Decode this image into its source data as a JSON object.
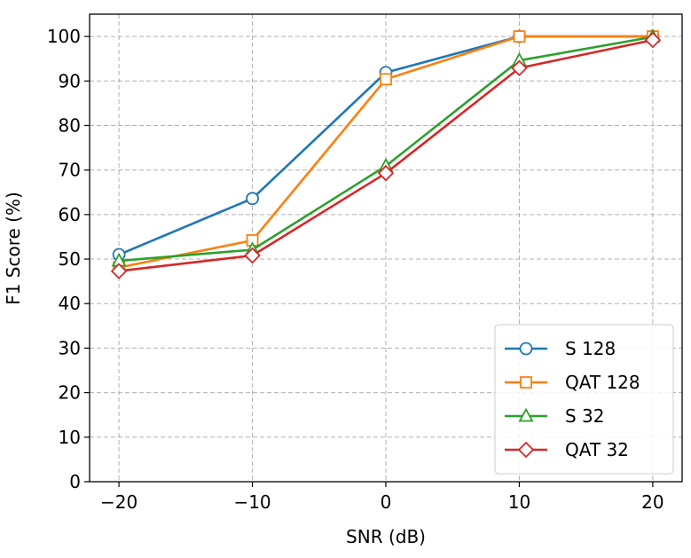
{
  "chart_data": {
    "type": "line",
    "title": "",
    "xlabel": "SNR (dB)",
    "ylabel": "F1 Score (%)",
    "x": [
      -20,
      -10,
      0,
      10,
      20
    ],
    "xticks": [
      -20,
      -10,
      0,
      10,
      20
    ],
    "xtick_labels": [
      "−20",
      "−10",
      "0",
      "10",
      "20"
    ],
    "yticks": [
      0,
      10,
      20,
      30,
      40,
      50,
      60,
      70,
      80,
      90,
      100
    ],
    "xlim": [
      -22.2,
      22.2
    ],
    "ylim": [
      0,
      105
    ],
    "grid": true,
    "grid_style": "dashed",
    "legend_position": "bottom-right",
    "series": [
      {
        "name": "S 128",
        "marker": "circle",
        "color": "#1f77b4",
        "values": [
          51.0,
          63.6,
          91.9,
          100.0,
          100.0
        ]
      },
      {
        "name": "QAT 128",
        "marker": "square",
        "color": "#ff7f0e",
        "values": [
          48.1,
          54.2,
          90.4,
          100.0,
          100.0
        ]
      },
      {
        "name": "S 32",
        "marker": "triangle",
        "color": "#2ca02c",
        "values": [
          49.6,
          52.1,
          70.9,
          94.6,
          99.9
        ]
      },
      {
        "name": "QAT 32",
        "marker": "diamond",
        "color": "#d62728",
        "values": [
          47.3,
          50.8,
          69.3,
          92.9,
          99.2
        ]
      }
    ]
  }
}
